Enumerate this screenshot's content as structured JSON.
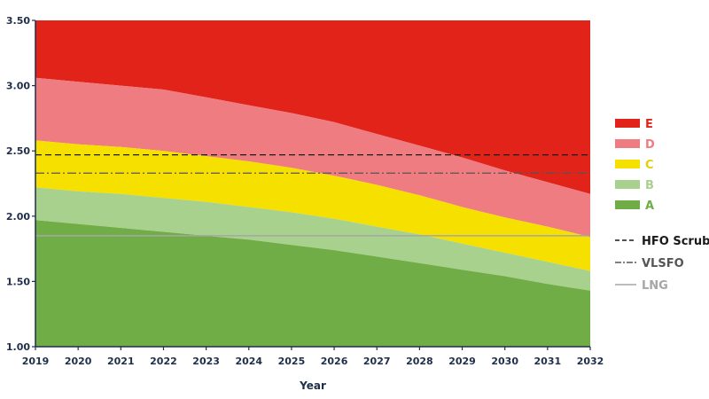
{
  "chart_data": {
    "type": "area",
    "xlabel": "Year",
    "ylabel": "",
    "xlim": [
      2019,
      2032
    ],
    "ylim": [
      1.0,
      3.5
    ],
    "yticks": [
      "1.00",
      "1.50",
      "2.00",
      "2.50",
      "3.00",
      "3.50"
    ],
    "x": [
      2019,
      2020,
      2021,
      2022,
      2023,
      2024,
      2025,
      2026,
      2027,
      2028,
      2029,
      2030,
      2031,
      2032
    ],
    "boundaries": {
      "A_B": [
        1.97,
        1.94,
        1.91,
        1.88,
        1.85,
        1.82,
        1.78,
        1.74,
        1.69,
        1.64,
        1.59,
        1.54,
        1.48,
        1.43
      ],
      "B_C": [
        2.22,
        2.19,
        2.17,
        2.14,
        2.11,
        2.07,
        2.03,
        1.98,
        1.92,
        1.86,
        1.79,
        1.72,
        1.65,
        1.58
      ],
      "C_D": [
        2.58,
        2.55,
        2.53,
        2.5,
        2.46,
        2.42,
        2.37,
        2.31,
        2.24,
        2.16,
        2.07,
        1.99,
        1.92,
        1.84
      ],
      "D_E": [
        3.06,
        3.03,
        3.0,
        2.97,
        2.91,
        2.85,
        2.79,
        2.72,
        2.63,
        2.54,
        2.45,
        2.35,
        2.26,
        2.17
      ]
    },
    "bands": [
      {
        "name": "E",
        "color": "#e2231a",
        "label_color": "#e2231a"
      },
      {
        "name": "D",
        "color": "#ef7c80",
        "label_color": "#ef7c80"
      },
      {
        "name": "C",
        "color": "#f5e000",
        "label_color": "#e6cf00"
      },
      {
        "name": "B",
        "color": "#a9d18e",
        "label_color": "#a9d18e"
      },
      {
        "name": "A",
        "color": "#70ad47",
        "label_color": "#70ad47"
      }
    ],
    "lines": [
      {
        "name": "HFO Scrubber",
        "value": 2.47,
        "style": "dashed",
        "color": "#1a1a1a"
      },
      {
        "name": "VLSFO",
        "value": 2.33,
        "style": "dashdot",
        "color": "#555555"
      },
      {
        "name": "LNG",
        "value": 1.85,
        "style": "solid",
        "color": "#a6a6a6"
      }
    ],
    "legend_position": "right",
    "grid": false
  }
}
